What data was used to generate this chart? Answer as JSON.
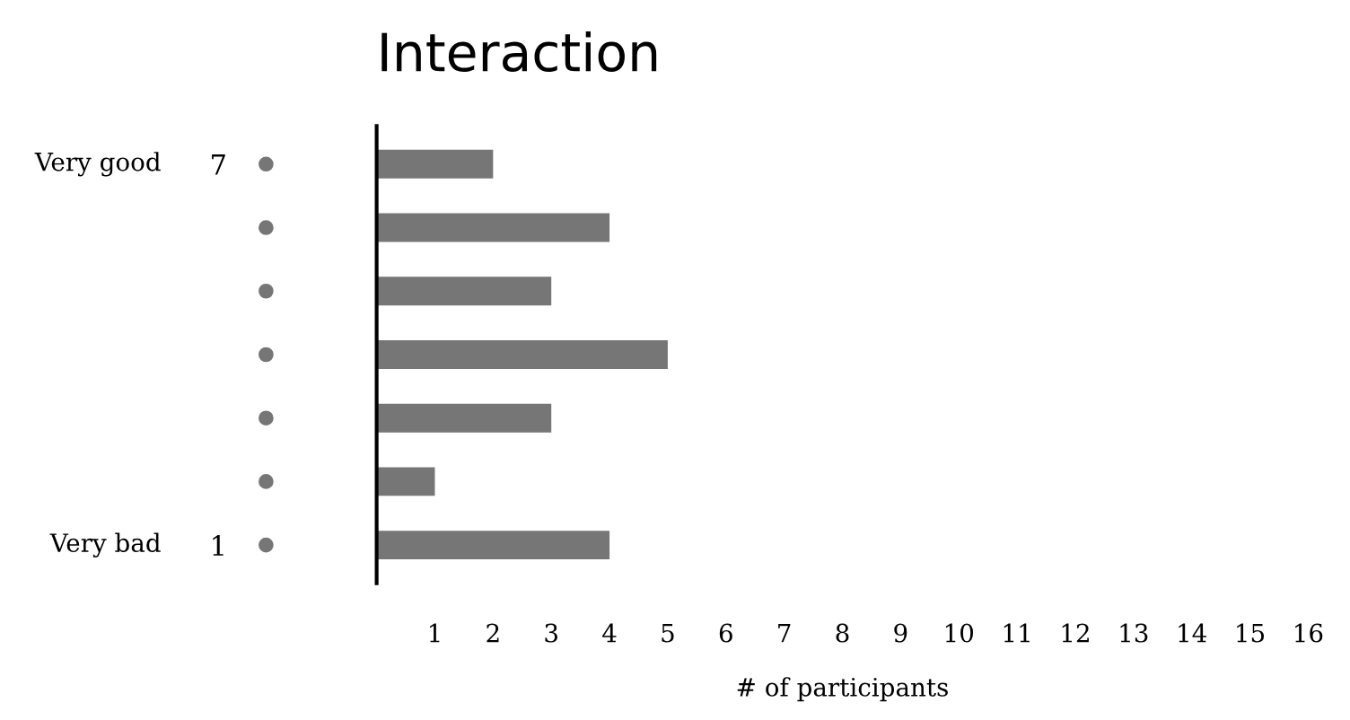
{
  "chart_data": {
    "type": "bar",
    "orientation": "horizontal",
    "title": "Interaction",
    "xlabel": "# of participants",
    "categories": [
      "7",
      null,
      null,
      null,
      null,
      null,
      "1"
    ],
    "values": [
      2,
      4,
      3,
      5,
      3,
      1,
      4
    ],
    "color": "#767676",
    "xlim": [
      0,
      16
    ],
    "xticks": [
      1,
      2,
      3,
      4,
      5,
      6,
      7,
      8,
      9,
      10,
      11,
      12,
      13,
      14,
      15,
      16
    ],
    "annotations": [
      "Very good",
      "Very bad"
    ],
    "grid": false
  }
}
